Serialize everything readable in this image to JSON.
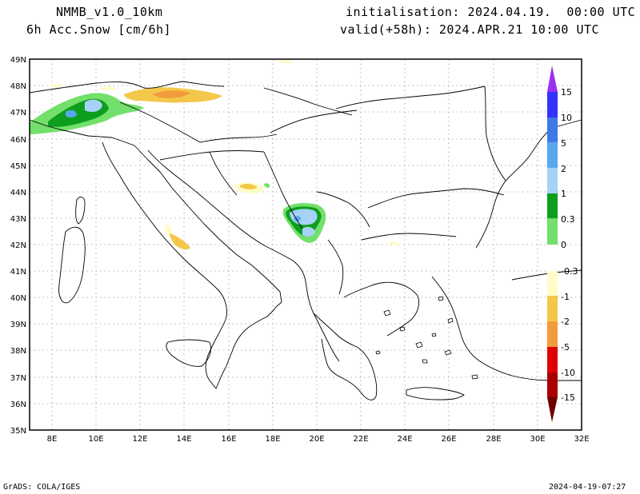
{
  "header": {
    "model": "NMMB_v1.0_10km",
    "variable": "6h Acc.Snow [cm/6h]",
    "init": "initialisation: 2024.04.19.  00:00 UTC",
    "valid": "valid(+58h): 2024.APR.21 10:00 UTC"
  },
  "footer": {
    "left": "GrADS: COLA/IGES",
    "right": "2024-04-19-07:27"
  },
  "axes": {
    "lon_labels": [
      "8E",
      "10E",
      "12E",
      "14E",
      "16E",
      "18E",
      "20E",
      "22E",
      "24E",
      "26E",
      "28E",
      "30E",
      "32E"
    ],
    "lat_labels": [
      "35N",
      "36N",
      "37N",
      "38N",
      "39N",
      "40N",
      "41N",
      "42N",
      "43N",
      "44N",
      "45N",
      "46N",
      "47N",
      "48N",
      "49N"
    ]
  },
  "colorbar": {
    "labels": [
      "15",
      "10",
      "5",
      "2",
      "1",
      "0.3",
      "0",
      "-0.3",
      "-1",
      "-2",
      "-5",
      "-10",
      "-15"
    ],
    "colors": {
      "top_arrow": "#9b30f0",
      "c15": "#3333ff",
      "c10": "#3d7ae8",
      "c5": "#5aa7ef",
      "c2": "#a6d2f7",
      "c1": "#0d9e1e",
      "c03": "#72e06a",
      "c0": "#ffffff",
      "cm03": "#fffcc8",
      "cm1": "#f3c84a",
      "cm2": "#f29b3c",
      "cm5": "#ef5a2a",
      "cm10": "#e00000",
      "cm15": "#a80000",
      "bottom_arrow": "#6e0000"
    }
  }
}
